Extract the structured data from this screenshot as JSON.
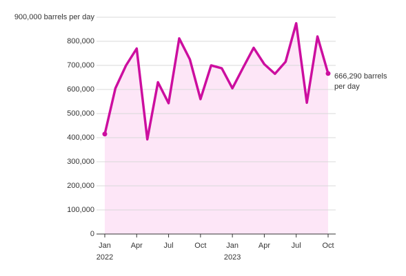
{
  "chart_data": {
    "type": "line",
    "categories": [
      "Jan",
      null,
      null,
      "Apr",
      null,
      null,
      "Jul",
      null,
      null,
      "Oct",
      null,
      null,
      "Jan",
      null,
      null,
      "Apr",
      null,
      null,
      "Jul",
      null,
      null,
      "Oct"
    ],
    "years": [
      "2022",
      null,
      null,
      null,
      null,
      null,
      null,
      null,
      null,
      null,
      null,
      null,
      "2023",
      null,
      null,
      null,
      null,
      null,
      null,
      null,
      null,
      null
    ],
    "series": [
      {
        "color": "#cc0e9f",
        "fill": "#fde6f7",
        "values": [
          415000,
          605000,
          700000,
          770000,
          393000,
          630000,
          543000,
          812000,
          725000,
          560000,
          700000,
          688000,
          605000,
          690000,
          773000,
          705000,
          665000,
          715000,
          875000,
          545000,
          820000,
          666290
        ]
      }
    ],
    "ylim": [
      0,
      900000
    ],
    "yticks": [
      0,
      {
        "value": 100000,
        "label": "100,000"
      },
      {
        "value": 200000,
        "label": "200,000"
      },
      {
        "value": 300000,
        "label": "300,000"
      },
      {
        "value": 400000,
        "label": "400,000"
      },
      {
        "value": 500000,
        "label": "500,000"
      },
      {
        "value": 600000,
        "label": "600,000"
      },
      {
        "value": 700000,
        "label": "700,000"
      },
      {
        "value": 800000,
        "label": "800,000"
      },
      {
        "value": 900000,
        "label": "900,000 barrels per day"
      }
    ],
    "annotation": "666,290 barrels per day",
    "grid": true
  }
}
